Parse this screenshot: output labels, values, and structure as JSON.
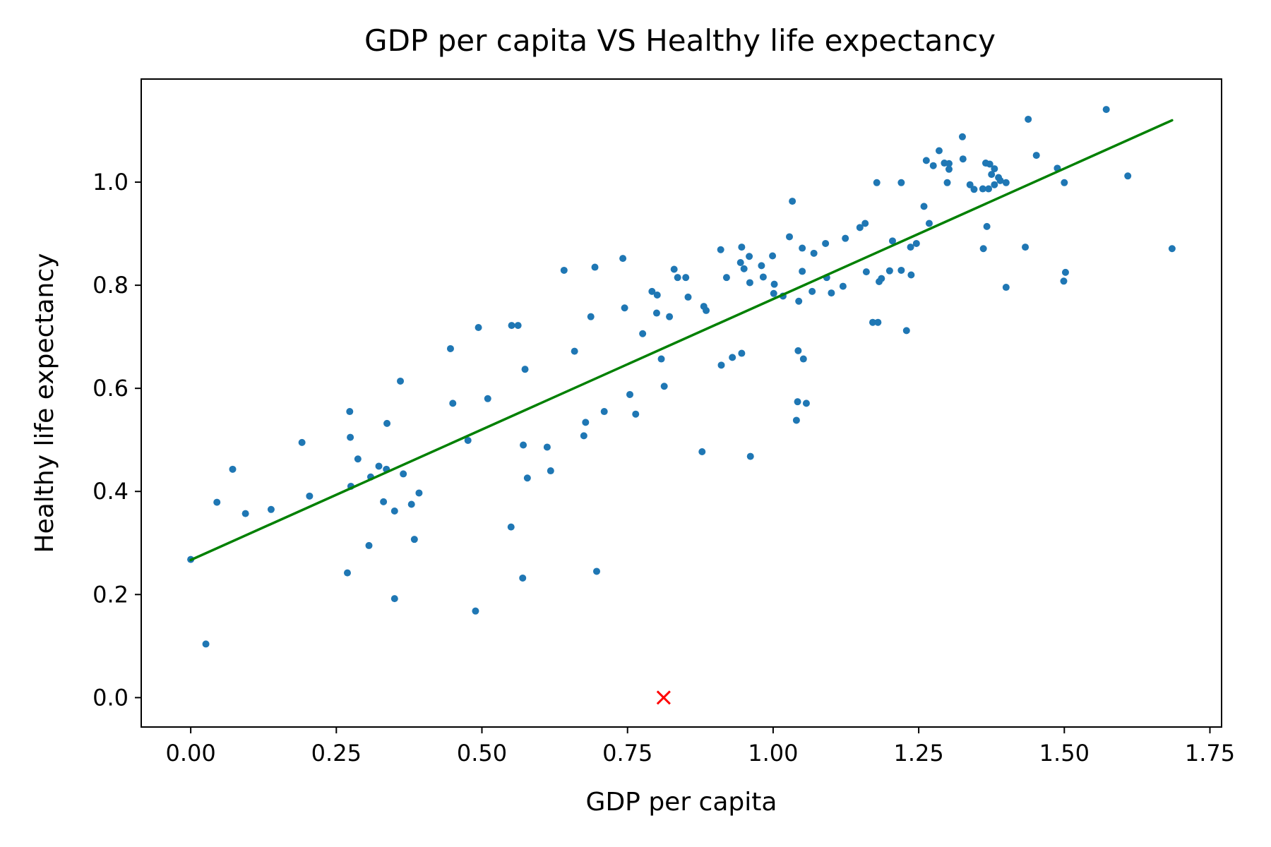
{
  "chart_data": {
    "type": "scatter",
    "title": "GDP per capita VS Healthy life expectancy",
    "xlabel": "GDP per capita",
    "ylabel": "Healthy life expectancy",
    "xlim": [
      -0.085,
      1.77
    ],
    "ylim": [
      -0.057,
      1.2
    ],
    "xticks": [
      0.0,
      0.25,
      0.5,
      0.75,
      1.0,
      1.25,
      1.5,
      1.75
    ],
    "xtick_labels": [
      "0.00",
      "0.25",
      "0.50",
      "0.75",
      "1.00",
      "1.25",
      "1.50",
      "1.75"
    ],
    "yticks": [
      0.0,
      0.2,
      0.4,
      0.6,
      0.8,
      1.0
    ],
    "ytick_labels": [
      "0.0",
      "0.2",
      "0.4",
      "0.6",
      "0.8",
      "1.0"
    ],
    "grid": false,
    "colors": {
      "points": "#1f77b4",
      "fit_line": "#008000",
      "outlier": "#ff0000"
    },
    "series": [
      {
        "type": "scatter",
        "points": [
          [
            0.0,
            0.268
          ],
          [
            0.026,
            0.104
          ],
          [
            0.045,
            0.379
          ],
          [
            0.072,
            0.443
          ],
          [
            0.094,
            0.357
          ],
          [
            0.138,
            0.365
          ],
          [
            0.191,
            0.495
          ],
          [
            0.204,
            0.391
          ],
          [
            0.269,
            0.242
          ],
          [
            0.273,
            0.555
          ],
          [
            0.274,
            0.505
          ],
          [
            0.275,
            0.41
          ],
          [
            0.287,
            0.463
          ],
          [
            0.306,
            0.295
          ],
          [
            0.309,
            0.428
          ],
          [
            0.323,
            0.449
          ],
          [
            0.331,
            0.38
          ],
          [
            0.337,
            0.532
          ],
          [
            0.336,
            0.443
          ],
          [
            0.35,
            0.362
          ],
          [
            0.35,
            0.192
          ],
          [
            0.36,
            0.614
          ],
          [
            0.365,
            0.434
          ],
          [
            0.379,
            0.375
          ],
          [
            0.384,
            0.307
          ],
          [
            0.392,
            0.397
          ],
          [
            0.446,
            0.677
          ],
          [
            0.45,
            0.571
          ],
          [
            0.476,
            0.499
          ],
          [
            0.489,
            0.168
          ],
          [
            0.494,
            0.718
          ],
          [
            0.51,
            0.58
          ],
          [
            0.55,
            0.331
          ],
          [
            0.551,
            0.722
          ],
          [
            0.562,
            0.722
          ],
          [
            0.571,
            0.49
          ],
          [
            0.57,
            0.232
          ],
          [
            0.574,
            0.637
          ],
          [
            0.578,
            0.426
          ],
          [
            0.612,
            0.486
          ],
          [
            0.618,
            0.44
          ],
          [
            0.641,
            0.829
          ],
          [
            0.659,
            0.672
          ],
          [
            0.675,
            0.508
          ],
          [
            0.678,
            0.534
          ],
          [
            0.687,
            0.739
          ],
          [
            0.694,
            0.835
          ],
          [
            0.697,
            0.245
          ],
          [
            0.71,
            0.555
          ],
          [
            0.742,
            0.852
          ],
          [
            0.745,
            0.756
          ],
          [
            0.754,
            0.588
          ],
          [
            0.764,
            0.55
          ],
          [
            0.776,
            0.706
          ],
          [
            0.792,
            0.788
          ],
          [
            0.8,
            0.746
          ],
          [
            0.801,
            0.781
          ],
          [
            0.808,
            0.657
          ],
          [
            0.813,
            0.604
          ],
          [
            0.822,
            0.739
          ],
          [
            0.83,
            0.831
          ],
          [
            0.836,
            0.815
          ],
          [
            0.85,
            0.815
          ],
          [
            0.854,
            0.777
          ],
          [
            0.878,
            0.477
          ],
          [
            0.881,
            0.759
          ],
          [
            0.885,
            0.751
          ],
          [
            0.91,
            0.869
          ],
          [
            0.911,
            0.645
          ],
          [
            0.92,
            0.815
          ],
          [
            0.93,
            0.66
          ],
          [
            0.944,
            0.844
          ],
          [
            0.946,
            0.874
          ],
          [
            0.946,
            0.668
          ],
          [
            0.95,
            0.832
          ],
          [
            0.959,
            0.856
          ],
          [
            0.96,
            0.805
          ],
          [
            0.961,
            0.468
          ],
          [
            0.98,
            0.838
          ],
          [
            0.983,
            0.816
          ],
          [
            0.999,
            0.857
          ],
          [
            1.001,
            0.784
          ],
          [
            1.002,
            0.802
          ],
          [
            1.017,
            0.779
          ],
          [
            1.028,
            0.894
          ],
          [
            1.033,
            0.963
          ],
          [
            1.04,
            0.538
          ],
          [
            1.044,
            0.769
          ],
          [
            1.042,
            0.574
          ],
          [
            1.043,
            0.673
          ],
          [
            1.05,
            0.827
          ],
          [
            1.05,
            0.872
          ],
          [
            1.052,
            0.657
          ],
          [
            1.057,
            0.571
          ],
          [
            1.067,
            0.788
          ],
          [
            1.07,
            0.862
          ],
          [
            1.09,
            0.881
          ],
          [
            1.092,
            0.815
          ],
          [
            1.1,
            0.785
          ],
          [
            1.12,
            0.798
          ],
          [
            1.124,
            0.891
          ],
          [
            1.149,
            0.912
          ],
          [
            1.158,
            0.92
          ],
          [
            1.16,
            0.826
          ],
          [
            1.171,
            0.728
          ],
          [
            1.178,
            0.999
          ],
          [
            1.18,
            0.728
          ],
          [
            1.182,
            0.807
          ],
          [
            1.186,
            0.813
          ],
          [
            1.2,
            0.828
          ],
          [
            1.205,
            0.886
          ],
          [
            1.22,
            0.829
          ],
          [
            1.22,
            0.999
          ],
          [
            1.229,
            0.712
          ],
          [
            1.236,
            0.874
          ],
          [
            1.237,
            0.82
          ],
          [
            1.246,
            0.881
          ],
          [
            1.259,
            0.953
          ],
          [
            1.263,
            1.042
          ],
          [
            1.268,
            0.92
          ],
          [
            1.275,
            1.032
          ],
          [
            1.285,
            1.061
          ],
          [
            1.294,
            1.037
          ],
          [
            1.299,
            0.999
          ],
          [
            1.302,
            1.036
          ],
          [
            1.302,
            1.025
          ],
          [
            1.325,
            1.088
          ],
          [
            1.326,
            1.045
          ],
          [
            1.338,
            0.995
          ],
          [
            1.345,
            0.986
          ],
          [
            1.36,
            0.987
          ],
          [
            1.361,
            0.871
          ],
          [
            1.365,
            1.037
          ],
          [
            1.367,
            0.914
          ],
          [
            1.372,
            1.035
          ],
          [
            1.37,
            0.987
          ],
          [
            1.375,
            1.015
          ],
          [
            1.38,
            1.026
          ],
          [
            1.38,
            0.995
          ],
          [
            1.387,
            1.009
          ],
          [
            1.39,
            1.003
          ],
          [
            1.4,
            0.999
          ],
          [
            1.4,
            0.796
          ],
          [
            1.433,
            0.874
          ],
          [
            1.438,
            1.122
          ],
          [
            1.452,
            1.052
          ],
          [
            1.488,
            1.027
          ],
          [
            1.499,
            0.808
          ],
          [
            1.5,
            0.999
          ],
          [
            1.502,
            0.825
          ],
          [
            1.572,
            1.141
          ],
          [
            1.609,
            1.012
          ],
          [
            1.685,
            0.871
          ]
        ]
      },
      {
        "type": "line",
        "x": [
          0.0,
          1.685
        ],
        "y": [
          0.267,
          1.12
        ]
      },
      {
        "type": "marker",
        "marker": "x",
        "points": [
          [
            0.812,
            0.0
          ]
        ]
      }
    ]
  }
}
